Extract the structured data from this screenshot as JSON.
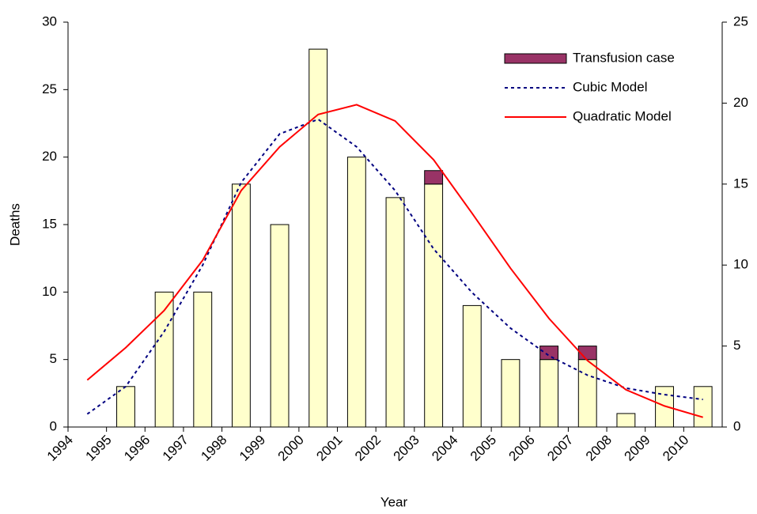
{
  "chart_data": {
    "type": "bar",
    "x_label": "Year",
    "y_label": "Deaths",
    "categories": [
      "1994",
      "1995",
      "1996",
      "1997",
      "1998",
      "1999",
      "2000",
      "2001",
      "2002",
      "2003",
      "2004",
      "2005",
      "2006",
      "2007",
      "2008",
      "2009",
      "2010"
    ],
    "ylim": [
      0,
      30
    ],
    "yticks": [
      0,
      5,
      10,
      15,
      20,
      25,
      30
    ],
    "y2lim": [
      0,
      25
    ],
    "y2ticks": [
      0,
      5,
      10,
      15,
      20,
      25
    ],
    "legend": "upper right",
    "series": [
      {
        "type": "bar",
        "color": "#FFFFCC",
        "stack": true,
        "values": [
          null,
          3,
          10,
          10,
          18,
          15,
          28,
          20,
          17,
          18,
          9,
          5,
          5,
          5,
          1,
          3,
          3
        ]
      },
      {
        "type": "bar",
        "name": "Transfusion case",
        "color": "#993366",
        "stack": true,
        "values": [
          null,
          null,
          null,
          null,
          null,
          null,
          null,
          null,
          null,
          1,
          null,
          null,
          1,
          1,
          null,
          null,
          null
        ]
      },
      {
        "type": "line",
        "name": "Cubic Model",
        "color": "#000080",
        "linestyle": "dotted",
        "axis": "y2",
        "values": [
          0.8,
          2.5,
          5.9,
          10.0,
          15.1,
          18.1,
          19.0,
          17.3,
          14.6,
          11.0,
          8.3,
          6.1,
          4.4,
          3.2,
          2.4,
          2.0,
          1.7
        ]
      },
      {
        "type": "line",
        "name": "Quadratic Model",
        "color": "#FF0000",
        "linestyle": "solid",
        "axis": "y2",
        "values": [
          2.9,
          4.9,
          7.2,
          10.3,
          14.6,
          17.3,
          19.3,
          19.9,
          18.9,
          16.5,
          13.2,
          9.8,
          6.7,
          4.1,
          2.3,
          1.3,
          0.6
        ]
      }
    ]
  }
}
